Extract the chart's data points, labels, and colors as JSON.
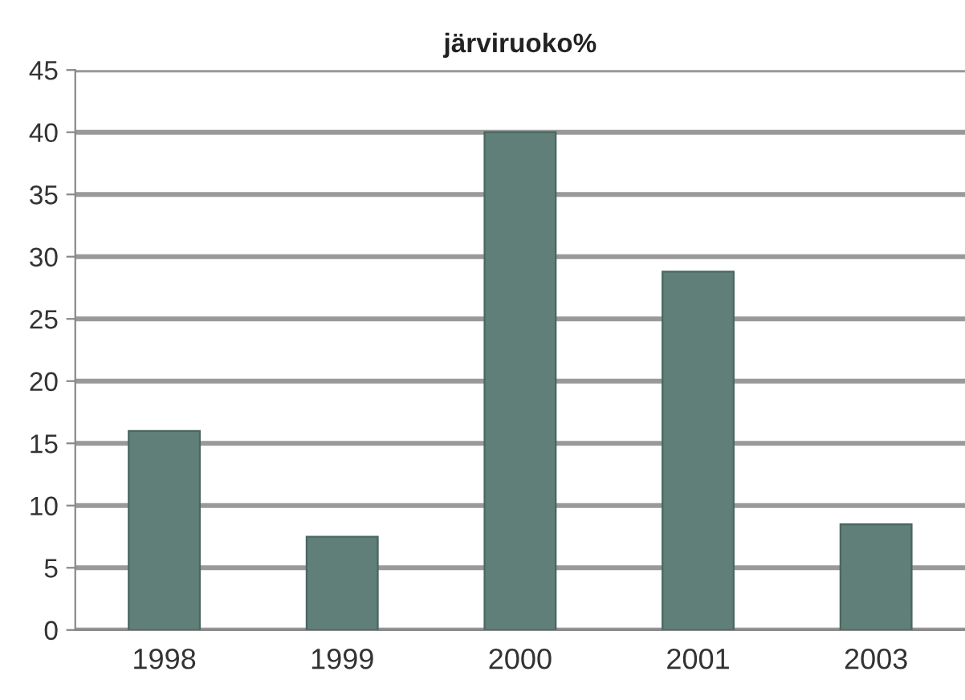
{
  "chart_data": {
    "type": "bar",
    "title": "järviruoko%",
    "categories": [
      "1998",
      "1999",
      "2000",
      "2001",
      "2003"
    ],
    "values": [
      16,
      7.5,
      40,
      28.8,
      8.5
    ],
    "color": "#5f7f78",
    "ylim": [
      0,
      45
    ],
    "yticks": [
      0,
      5,
      10,
      15,
      20,
      25,
      30,
      35,
      40,
      45
    ],
    "grid": "y"
  }
}
